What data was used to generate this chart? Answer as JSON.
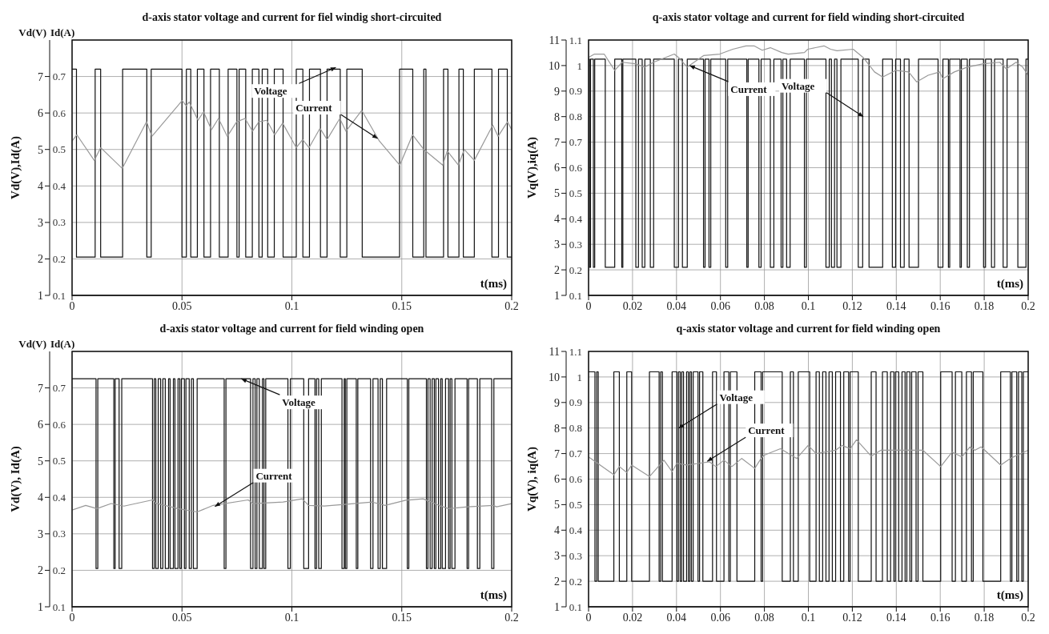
{
  "chart_data": [
    {
      "type": "line",
      "title": "d-axis stator voltage and current for fiel windig short-circuited",
      "xlabel": "t(ms)",
      "ylabel": "Vd(V),Id(A)",
      "y2label": "Id(A)",
      "annotations": [
        "Vd(V)",
        {
          "text": "Voltage",
          "x": 0.12,
          "y": 7.25
        },
        {
          "text": "Current",
          "x": 0.139,
          "y": 5.3
        }
      ],
      "xlim": [
        0,
        0.2
      ],
      "xticks": [
        0,
        0.05,
        0.1,
        0.15,
        0.2
      ],
      "ylim": [
        1,
        8
      ],
      "yticks": [
        1,
        2,
        3,
        4,
        5,
        6,
        7
      ],
      "y2lim": [
        0.1,
        0.8
      ],
      "y2ticks": [
        0.1,
        0.2,
        0.3,
        0.4,
        0.5,
        0.6,
        0.7
      ],
      "grid": true,
      "series": [
        {
          "type": "step",
          "color": "#111111",
          "x": [
            0,
            0.002,
            0.0105,
            0.013,
            0.023,
            0.034,
            0.036,
            0.05,
            0.052,
            0.054,
            0.057,
            0.06,
            0.063,
            0.067,
            0.071,
            0.075,
            0.076,
            0.079,
            0.082,
            0.085,
            0.0865,
            0.089,
            0.092,
            0.096,
            0.102,
            0.105,
            0.108,
            0.113,
            0.116,
            0.122,
            0.125,
            0.132,
            0.149,
            0.155,
            0.16,
            0.161,
            0.169,
            0.171,
            0.176,
            0.178,
            0.183,
            0.191,
            0.194,
            0.198,
            0.2
          ],
          "values": [
            7.2,
            2.05,
            7.2,
            2.05,
            7.2,
            2.05,
            7.2,
            2.05,
            7.2,
            2.05,
            7.2,
            2.05,
            7.2,
            2.05,
            7.2,
            2.05,
            7.2,
            2.05,
            7.2,
            2.05,
            7.2,
            2.05,
            7.2,
            2.05,
            7.2,
            2.05,
            7.2,
            2.05,
            7.2,
            2.05,
            7.2,
            2.05,
            7.2,
            2.05,
            7.2,
            2.05,
            7.2,
            2.05,
            7.2,
            2.05,
            7.2,
            2.05,
            7.2,
            2.05,
            2.05
          ]
        },
        {
          "type": "line",
          "axis": "y2",
          "color": "#999999",
          "x": [
            0,
            0.0022,
            0.0101,
            0.013,
            0.0228,
            0.0339,
            0.0363,
            0.0501,
            0.0519,
            0.0533,
            0.0573,
            0.0598,
            0.0634,
            0.0666,
            0.0706,
            0.0749,
            0.0787,
            0.0821,
            0.085,
            0.0886,
            0.0922,
            0.0958,
            0.102,
            0.1049,
            0.1078,
            0.1128,
            0.116,
            0.1218,
            0.1246,
            0.1318,
            0.1398,
            0.1491,
            0.1549,
            0.16,
            0.1686,
            0.1707,
            0.1758,
            0.1784,
            0.183,
            0.1914,
            0.1938,
            0.1981,
            0.2
          ],
          "values": [
            0.523,
            0.54,
            0.47,
            0.505,
            0.448,
            0.576,
            0.536,
            0.634,
            0.62,
            0.63,
            0.58,
            0.603,
            0.554,
            0.585,
            0.536,
            0.576,
            0.585,
            0.55,
            0.576,
            0.58,
            0.54,
            0.572,
            0.505,
            0.527,
            0.505,
            0.558,
            0.527,
            0.585,
            0.55,
            0.607,
            0.523,
            0.457,
            0.54,
            0.5,
            0.457,
            0.496,
            0.457,
            0.5,
            0.47,
            0.567,
            0.536,
            0.576,
            0.554
          ]
        }
      ]
    },
    {
      "type": "line",
      "title": "q-axis stator voltage and current for field winding short-circuited",
      "xlabel": "t(ms)",
      "ylabel": "Vq(V),iq(A)",
      "annotations": [
        {
          "text": "Current",
          "x": 0.046,
          "y": 10.0
        },
        {
          "text": "Voltage",
          "x": 0.125,
          "y": 8.0
        }
      ],
      "xlim": [
        0,
        0.2
      ],
      "xticks": [
        0,
        0.02,
        0.04,
        0.06,
        0.08,
        0.1,
        0.12,
        0.14,
        0.16,
        0.18,
        0.2
      ],
      "ylim": [
        1,
        11
      ],
      "yticks": [
        1,
        2,
        3,
        4,
        5,
        6,
        7,
        8,
        9,
        10,
        11
      ],
      "y2lim": [
        0.1,
        1.1
      ],
      "y2ticks": [
        0.1,
        0.2,
        0.3,
        0.4,
        0.5,
        0.6,
        0.7,
        0.8,
        0.9,
        1,
        1.1
      ],
      "grid": true,
      "series": [
        {
          "type": "step",
          "color": "#111111",
          "x": [
            0,
            0.0004,
            0.0009,
            0.0022,
            0.0028,
            0.0076,
            0.0119,
            0.0151,
            0.0156,
            0.0215,
            0.0227,
            0.0244,
            0.0256,
            0.0281,
            0.0296,
            0.039,
            0.0409,
            0.0427,
            0.0449,
            0.0523,
            0.053,
            0.0548,
            0.0556,
            0.0624,
            0.0633,
            0.072,
            0.0726,
            0.0775,
            0.0785,
            0.0827,
            0.0843,
            0.0876,
            0.0884,
            0.0901,
            0.0917,
            0.0982,
            0.0991,
            0.108,
            0.1095,
            0.1105,
            0.1119,
            0.113,
            0.1148,
            0.1227,
            0.1247,
            0.1276,
            0.1338,
            0.1382,
            0.1397,
            0.1419,
            0.1436,
            0.1458,
            0.1501,
            0.159,
            0.1612,
            0.1637,
            0.1643,
            0.169,
            0.1696,
            0.1723,
            0.1733,
            0.1797,
            0.1806,
            0.1833,
            0.1847,
            0.1886,
            0.1904,
            0.1953,
            0.199,
            0.2
          ],
          "values": [
            10.25,
            2.1,
            10.25,
            2.1,
            10.25,
            2.1,
            10.25,
            2.1,
            10.25,
            2.1,
            10.25,
            2.1,
            10.25,
            2.1,
            10.25,
            2.1,
            10.25,
            2.1,
            10.25,
            2.1,
            10.25,
            2.1,
            10.25,
            2.1,
            10.25,
            2.1,
            10.25,
            2.1,
            10.25,
            2.1,
            10.25,
            2.1,
            10.25,
            2.1,
            10.25,
            2.1,
            10.25,
            2.1,
            10.25,
            2.1,
            10.25,
            2.1,
            10.25,
            2.1,
            10.25,
            2.1,
            10.25,
            2.1,
            10.25,
            2.1,
            10.25,
            2.1,
            10.25,
            2.1,
            10.25,
            2.1,
            10.25,
            2.1,
            10.25,
            2.1,
            10.25,
            2.1,
            10.25,
            2.1,
            10.25,
            2.1,
            10.25,
            2.1,
            10.25,
            10.25
          ]
        },
        {
          "type": "line",
          "axis": "y2",
          "color": "#999999",
          "x": [
            0,
            0.0027,
            0.0071,
            0.0119,
            0.0153,
            0.0212,
            0.0256,
            0.0296,
            0.039,
            0.0409,
            0.0449,
            0.0523,
            0.0597,
            0.0656,
            0.0716,
            0.0753,
            0.079,
            0.0827,
            0.0879,
            0.0908,
            0.0982,
            0.0997,
            0.1071,
            0.1101,
            0.113,
            0.1204,
            0.1249,
            0.1301,
            0.1338,
            0.1397,
            0.1456,
            0.1493,
            0.1545,
            0.1597,
            0.1612,
            0.1664,
            0.1723,
            0.1797,
            0.1871,
            0.1901,
            0.1945,
            0.1975,
            0.2
          ],
          "values": [
            1.032,
            1.045,
            1.045,
            0.981,
            1.013,
            1.007,
            0.994,
            1.013,
            1.045,
            1.032,
            0.994,
            1.039,
            1.045,
            1.064,
            1.077,
            1.077,
            1.06,
            1.07,
            1.051,
            1.045,
            1.051,
            1.064,
            1.077,
            1.064,
            1.058,
            1.064,
            1.032,
            0.975,
            0.955,
            0.981,
            0.975,
            0.936,
            0.962,
            0.975,
            0.949,
            0.975,
            0.994,
            1.007,
            1.013,
            0.987,
            1.013,
            0.994,
            0.962
          ]
        }
      ]
    },
    {
      "type": "line",
      "title": "d-axis stator voltage and current for field winding open",
      "xlabel": "t(ms)",
      "ylabel": "Vd(V), Id(A)",
      "y2label": "Id(A)",
      "annotations": [
        "Vd(V)",
        {
          "text": "Voltage",
          "x": 0.077,
          "y": 7.25
        },
        {
          "text": "Current",
          "x": 0.065,
          "y": 3.75
        }
      ],
      "xlim": [
        0,
        0.2
      ],
      "xticks": [
        0,
        0.05,
        0.1,
        0.15,
        0.2
      ],
      "ylim": [
        1,
        8
      ],
      "yticks": [
        1,
        2,
        3,
        4,
        5,
        6,
        7
      ],
      "y2lim": [
        0.1,
        0.8
      ],
      "y2ticks": [
        0.1,
        0.2,
        0.3,
        0.4,
        0.5,
        0.6,
        0.7
      ],
      "grid": true,
      "series": [
        {
          "type": "step",
          "color": "#111111",
          "x": [
            0,
            0.0109,
            0.0117,
            0.019,
            0.0196,
            0.0214,
            0.0226,
            0.0366,
            0.0374,
            0.0381,
            0.0392,
            0.0403,
            0.0413,
            0.0424,
            0.0439,
            0.0446,
            0.0461,
            0.0468,
            0.0482,
            0.049,
            0.0497,
            0.0511,
            0.0518,
            0.0533,
            0.0543,
            0.0552,
            0.0569,
            0.0692,
            0.07,
            0.0812,
            0.0823,
            0.0833,
            0.0841,
            0.0852,
            0.0866,
            0.0873,
            0.0881,
            0.0982,
            0.0993,
            0.1054,
            0.1076,
            0.1105,
            0.1112,
            0.1122,
            0.1134,
            0.1228,
            0.1238,
            0.1243,
            0.125,
            0.1293,
            0.13,
            0.1358,
            0.1369,
            0.1392,
            0.1402,
            0.1412,
            0.1431,
            0.1525,
            0.1532,
            0.1612,
            0.1619,
            0.1629,
            0.1638,
            0.1648,
            0.1655,
            0.1667,
            0.1677,
            0.1684,
            0.1699,
            0.1713,
            0.172,
            0.1728,
            0.1742,
            0.1797,
            0.1804,
            0.1844,
            0.1855,
            0.1909,
            0.1919,
            0.2
          ],
          "values": [
            7.25,
            2.05,
            7.25,
            2.05,
            7.25,
            2.05,
            7.25,
            2.05,
            7.25,
            2.05,
            7.25,
            2.05,
            7.25,
            2.05,
            7.25,
            2.05,
            7.25,
            2.05,
            7.25,
            2.05,
            7.25,
            2.05,
            7.25,
            2.05,
            7.25,
            2.05,
            7.25,
            2.05,
            7.25,
            2.05,
            7.25,
            2.05,
            7.25,
            2.05,
            7.25,
            2.05,
            7.25,
            2.05,
            7.25,
            2.05,
            7.25,
            2.05,
            7.25,
            2.05,
            7.25,
            2.05,
            7.25,
            2.05,
            7.25,
            2.05,
            7.25,
            2.05,
            7.25,
            2.05,
            7.25,
            2.05,
            7.25,
            2.05,
            7.25,
            2.05,
            7.25,
            2.05,
            7.25,
            2.05,
            7.25,
            2.05,
            7.25,
            2.05,
            7.25,
            2.05,
            7.25,
            2.05,
            7.25,
            2.05,
            7.25,
            2.05,
            7.25,
            2.05,
            7.25,
            7.25
          ]
        },
        {
          "type": "line",
          "axis": "y2",
          "color": "#999999",
          "x": [
            0,
            0.0062,
            0.0113,
            0.0178,
            0.0236,
            0.0366,
            0.0381,
            0.0482,
            0.0569,
            0.0642,
            0.0801,
            0.0823,
            0.096,
            0.1047,
            0.1076,
            0.1148,
            0.125,
            0.1366,
            0.1424,
            0.1518,
            0.1597,
            0.1669,
            0.1713,
            0.18,
            0.1916,
            0.1931,
            0.2
          ],
          "values": [
            0.365,
            0.378,
            0.369,
            0.383,
            0.376,
            0.393,
            0.384,
            0.369,
            0.36,
            0.378,
            0.393,
            0.383,
            0.387,
            0.396,
            0.378,
            0.376,
            0.381,
            0.387,
            0.378,
            0.392,
            0.396,
            0.378,
            0.369,
            0.374,
            0.378,
            0.374,
            0.383
          ]
        }
      ]
    },
    {
      "type": "line",
      "title": "q-axis stator voltage and current for field winding open",
      "xlabel": "t(ms)",
      "ylabel": "Vq(V), iq(A)",
      "annotations": [
        {
          "text": "Voltage",
          "x": 0.041,
          "y": 8.0
        },
        {
          "text": "Current",
          "x": 0.054,
          "y": 6.7
        }
      ],
      "xlim": [
        0,
        0.2
      ],
      "xticks": [
        0,
        0.02,
        0.04,
        0.06,
        0.08,
        0.1,
        0.12,
        0.14,
        0.16,
        0.18,
        0.2
      ],
      "ylim": [
        1,
        11
      ],
      "yticks": [
        1,
        2,
        3,
        4,
        5,
        6,
        7,
        8,
        9,
        10,
        11
      ],
      "y2lim": [
        0.1,
        1.1
      ],
      "y2ticks": [
        0.1,
        0.2,
        0.3,
        0.4,
        0.5,
        0.6,
        0.7,
        0.8,
        0.9,
        1,
        1.1
      ],
      "grid": true,
      "series": [
        {
          "type": "step",
          "color": "#111111",
          "x": [
            0,
            0.0029,
            0.0037,
            0.0044,
            0.0115,
            0.014,
            0.0174,
            0.0196,
            0.0277,
            0.0321,
            0.0328,
            0.0336,
            0.038,
            0.0402,
            0.0409,
            0.0417,
            0.0424,
            0.0432,
            0.0446,
            0.0454,
            0.0461,
            0.0468,
            0.0476,
            0.0498,
            0.0505,
            0.052,
            0.0564,
            0.0582,
            0.0616,
            0.0638,
            0.0645,
            0.0675,
            0.0756,
            0.0785,
            0.0792,
            0.0881,
            0.0918,
            0.0932,
            0.0954,
            0.1006,
            0.1035,
            0.105,
            0.1065,
            0.108,
            0.1094,
            0.1109,
            0.1124,
            0.1146,
            0.1161,
            0.1183,
            0.119,
            0.1227,
            0.1286,
            0.1308,
            0.1337,
            0.1359,
            0.1374,
            0.1389,
            0.1396,
            0.1411,
            0.1426,
            0.144,
            0.1448,
            0.1462,
            0.147,
            0.149,
            0.1499,
            0.1521,
            0.1602,
            0.1654,
            0.1669,
            0.1698,
            0.1719,
            0.1742,
            0.175,
            0.1794,
            0.1875,
            0.1919,
            0.1926,
            0.1948,
            0.1956,
            0.1971,
            0.1978,
            0.2
          ],
          "values": [
            10.2,
            2.0,
            10.2,
            2.0,
            10.2,
            2.0,
            10.2,
            2.0,
            10.2,
            2.0,
            10.2,
            2.0,
            10.2,
            2.0,
            10.2,
            2.0,
            10.2,
            2.0,
            10.2,
            2.0,
            10.2,
            2.0,
            10.2,
            2.0,
            10.2,
            2.0,
            10.2,
            2.0,
            10.2,
            2.0,
            10.2,
            2.0,
            10.2,
            2.0,
            10.2,
            2.0,
            10.2,
            2.0,
            10.2,
            2.0,
            10.2,
            2.0,
            10.2,
            2.0,
            10.2,
            2.0,
            10.2,
            2.0,
            10.2,
            2.0,
            10.2,
            2.0,
            10.2,
            2.0,
            10.2,
            2.0,
            10.2,
            2.0,
            10.2,
            2.0,
            10.2,
            2.0,
            10.2,
            2.0,
            10.2,
            2.0,
            10.2,
            2.0,
            10.2,
            2.0,
            10.2,
            2.0,
            10.2,
            2.0,
            10.2,
            2.0,
            10.2,
            2.0,
            10.2,
            2.0,
            10.2,
            2.0,
            10.2,
            10.2
          ]
        },
        {
          "type": "line",
          "axis": "y2",
          "color": "#999999",
          "x": [
            0,
            0.0115,
            0.014,
            0.0174,
            0.0196,
            0.0277,
            0.0343,
            0.038,
            0.0402,
            0.0446,
            0.0505,
            0.0549,
            0.0579,
            0.0616,
            0.0652,
            0.0697,
            0.0756,
            0.0785,
            0.08,
            0.0873,
            0.0947,
            0.0999,
            0.1035,
            0.1124,
            0.1153,
            0.119,
            0.1219,
            0.1286,
            0.133,
            0.1521,
            0.1602,
            0.1654,
            0.1698,
            0.1735,
            0.1757,
            0.1786,
            0.1875,
            0.1919,
            0.2
          ],
          "values": [
            0.687,
            0.617,
            0.649,
            0.626,
            0.655,
            0.61,
            0.674,
            0.629,
            0.662,
            0.655,
            0.662,
            0.668,
            0.649,
            0.674,
            0.649,
            0.681,
            0.642,
            0.681,
            0.694,
            0.719,
            0.681,
            0.732,
            0.7,
            0.713,
            0.732,
            0.719,
            0.754,
            0.69,
            0.713,
            0.713,
            0.649,
            0.706,
            0.687,
            0.726,
            0.713,
            0.726,
            0.655,
            0.681,
            0.713
          ]
        }
      ]
    }
  ]
}
